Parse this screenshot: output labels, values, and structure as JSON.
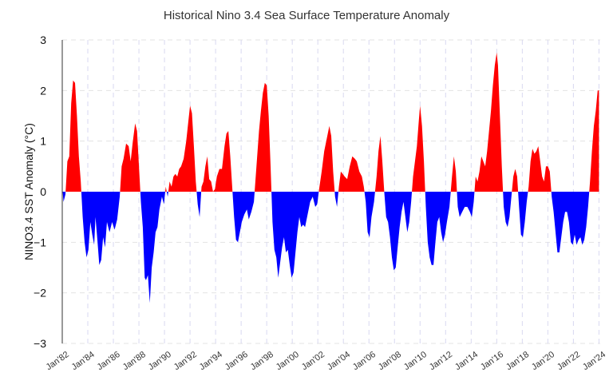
{
  "chart_data": {
    "type": "area",
    "title": "Historical Nino 3.4 Sea Surface Temperature Anomaly",
    "ylabel": "NINO3.4 SST Anomaly (°C)",
    "xlabel": "",
    "ylim": [
      -3,
      3
    ],
    "yticks": [
      "3",
      "2",
      "1",
      "0",
      "−1",
      "−2",
      "−3"
    ],
    "ytick_values": [
      3,
      2,
      1,
      0,
      -1,
      -2,
      -3
    ],
    "xticks": [
      "Jan'82",
      "Jan'84",
      "Jan'86",
      "Jan'88",
      "Jan'90",
      "Jan'92",
      "Jan'94",
      "Jan'96",
      "Jan'98",
      "Jan'00",
      "Jan'02",
      "Jan'04",
      "Jan'06",
      "Jan'08",
      "Jan'10",
      "Jan'12",
      "Jan'14",
      "Jan'16",
      "Jan'18",
      "Jan'20",
      "Jan'22",
      "Jan'24"
    ],
    "xtick_years": [
      1982,
      1984,
      1986,
      1988,
      1990,
      1992,
      1994,
      1996,
      1998,
      2000,
      2002,
      2004,
      2006,
      2008,
      2010,
      2012,
      2014,
      2016,
      2018,
      2020,
      2022,
      2024
    ],
    "xlim": [
      1982.0,
      2024.1
    ],
    "grid": true,
    "legend": "none",
    "colors": {
      "positive": "#ff0000",
      "negative": "#0000ff",
      "grid_h": "#e3e3e3",
      "grid_v": "#d8d8f0"
    },
    "series": [
      {
        "values": [
          [
            1982.0,
            0.1
          ],
          [
            1982.1,
            -0.2
          ],
          [
            1982.25,
            -0.05
          ],
          [
            1982.4,
            0.6
          ],
          [
            1982.55,
            0.7
          ],
          [
            1982.7,
            1.75
          ],
          [
            1982.85,
            2.2
          ],
          [
            1983.0,
            2.15
          ],
          [
            1983.15,
            1.5
          ],
          [
            1983.3,
            0.7
          ],
          [
            1983.45,
            0.2
          ],
          [
            1983.6,
            -0.5
          ],
          [
            1983.75,
            -1.0
          ],
          [
            1983.9,
            -1.3
          ],
          [
            1984.05,
            -1.15
          ],
          [
            1984.2,
            -0.6
          ],
          [
            1984.35,
            -0.85
          ],
          [
            1984.5,
            -1.05
          ],
          [
            1984.6,
            -0.5
          ],
          [
            1984.75,
            -0.95
          ],
          [
            1984.9,
            -1.45
          ],
          [
            1985.05,
            -1.35
          ],
          [
            1985.2,
            -0.9
          ],
          [
            1985.35,
            -1.1
          ],
          [
            1985.5,
            -0.6
          ],
          [
            1985.7,
            -0.8
          ],
          [
            1985.9,
            -0.6
          ],
          [
            1986.1,
            -0.75
          ],
          [
            1986.3,
            -0.55
          ],
          [
            1986.5,
            -0.1
          ],
          [
            1986.65,
            0.5
          ],
          [
            1986.8,
            0.65
          ],
          [
            1987.0,
            0.95
          ],
          [
            1987.2,
            0.9
          ],
          [
            1987.35,
            0.6
          ],
          [
            1987.5,
            0.95
          ],
          [
            1987.7,
            1.35
          ],
          [
            1987.85,
            1.2
          ],
          [
            1988.0,
            0.5
          ],
          [
            1988.15,
            -0.2
          ],
          [
            1988.3,
            -0.7
          ],
          [
            1988.45,
            -1.7
          ],
          [
            1988.55,
            -1.75
          ],
          [
            1988.7,
            -1.65
          ],
          [
            1988.85,
            -2.2
          ],
          [
            1989.0,
            -1.5
          ],
          [
            1989.15,
            -1.2
          ],
          [
            1989.3,
            -0.8
          ],
          [
            1989.45,
            -0.7
          ],
          [
            1989.6,
            -0.35
          ],
          [
            1989.8,
            -0.1
          ],
          [
            1989.95,
            -0.25
          ],
          [
            1990.1,
            0.1
          ],
          [
            1990.25,
            -0.1
          ],
          [
            1990.4,
            0.2
          ],
          [
            1990.55,
            0.1
          ],
          [
            1990.7,
            0.3
          ],
          [
            1990.85,
            0.35
          ],
          [
            1991.0,
            0.3
          ],
          [
            1991.15,
            0.45
          ],
          [
            1991.3,
            0.5
          ],
          [
            1991.5,
            0.65
          ],
          [
            1991.7,
            1.0
          ],
          [
            1991.85,
            1.35
          ],
          [
            1992.0,
            1.7
          ],
          [
            1992.15,
            1.55
          ],
          [
            1992.3,
            0.9
          ],
          [
            1992.45,
            0.2
          ],
          [
            1992.6,
            -0.25
          ],
          [
            1992.75,
            -0.5
          ],
          [
            1992.9,
            0.1
          ],
          [
            1993.05,
            0.2
          ],
          [
            1993.2,
            0.5
          ],
          [
            1993.35,
            0.7
          ],
          [
            1993.5,
            0.25
          ],
          [
            1993.65,
            0.2
          ],
          [
            1993.8,
            0.0
          ],
          [
            1993.95,
            0.05
          ],
          [
            1994.1,
            0.3
          ],
          [
            1994.3,
            0.45
          ],
          [
            1994.5,
            0.45
          ],
          [
            1994.7,
            0.9
          ],
          [
            1994.85,
            1.15
          ],
          [
            1995.0,
            1.2
          ],
          [
            1995.15,
            0.7
          ],
          [
            1995.3,
            0.1
          ],
          [
            1995.45,
            -0.5
          ],
          [
            1995.6,
            -0.95
          ],
          [
            1995.75,
            -1.0
          ],
          [
            1995.9,
            -0.8
          ],
          [
            1996.05,
            -0.6
          ],
          [
            1996.25,
            -0.45
          ],
          [
            1996.45,
            -0.35
          ],
          [
            1996.6,
            -0.55
          ],
          [
            1996.8,
            -0.4
          ],
          [
            1997.0,
            -0.2
          ],
          [
            1997.2,
            0.5
          ],
          [
            1997.4,
            1.2
          ],
          [
            1997.55,
            1.6
          ],
          [
            1997.7,
            1.95
          ],
          [
            1997.85,
            2.15
          ],
          [
            1998.0,
            2.1
          ],
          [
            1998.15,
            1.5
          ],
          [
            1998.3,
            0.5
          ],
          [
            1998.45,
            -0.6
          ],
          [
            1998.6,
            -1.15
          ],
          [
            1998.75,
            -1.3
          ],
          [
            1998.9,
            -1.7
          ],
          [
            1999.05,
            -1.4
          ],
          [
            1999.2,
            -1.1
          ],
          [
            1999.35,
            -0.9
          ],
          [
            1999.5,
            -1.2
          ],
          [
            1999.65,
            -1.15
          ],
          [
            1999.8,
            -1.45
          ],
          [
            1999.95,
            -1.7
          ],
          [
            2000.1,
            -1.6
          ],
          [
            2000.25,
            -1.2
          ],
          [
            2000.4,
            -0.8
          ],
          [
            2000.55,
            -0.5
          ],
          [
            2000.7,
            -0.7
          ],
          [
            2000.85,
            -0.65
          ],
          [
            2001.0,
            -0.7
          ],
          [
            2001.2,
            -0.45
          ],
          [
            2001.4,
            -0.2
          ],
          [
            2001.6,
            -0.1
          ],
          [
            2001.8,
            -0.3
          ],
          [
            2001.95,
            -0.25
          ],
          [
            2002.1,
            0.05
          ],
          [
            2002.3,
            0.4
          ],
          [
            2002.5,
            0.8
          ],
          [
            2002.7,
            1.05
          ],
          [
            2002.9,
            1.3
          ],
          [
            2003.05,
            1.1
          ],
          [
            2003.2,
            0.4
          ],
          [
            2003.35,
            -0.1
          ],
          [
            2003.5,
            -0.3
          ],
          [
            2003.65,
            0.1
          ],
          [
            2003.8,
            0.4
          ],
          [
            2003.95,
            0.35
          ],
          [
            2004.1,
            0.3
          ],
          [
            2004.3,
            0.25
          ],
          [
            2004.5,
            0.5
          ],
          [
            2004.7,
            0.7
          ],
          [
            2004.9,
            0.65
          ],
          [
            2005.05,
            0.6
          ],
          [
            2005.25,
            0.4
          ],
          [
            2005.45,
            0.3
          ],
          [
            2005.6,
            0.1
          ],
          [
            2005.75,
            -0.2
          ],
          [
            2005.9,
            -0.8
          ],
          [
            2006.05,
            -0.9
          ],
          [
            2006.2,
            -0.5
          ],
          [
            2006.4,
            -0.2
          ],
          [
            2006.6,
            0.3
          ],
          [
            2006.75,
            0.8
          ],
          [
            2006.9,
            1.1
          ],
          [
            2007.05,
            0.6
          ],
          [
            2007.2,
            0.0
          ],
          [
            2007.35,
            -0.5
          ],
          [
            2007.5,
            -0.6
          ],
          [
            2007.65,
            -0.9
          ],
          [
            2007.8,
            -1.3
          ],
          [
            2007.95,
            -1.55
          ],
          [
            2008.1,
            -1.5
          ],
          [
            2008.25,
            -1.1
          ],
          [
            2008.4,
            -0.7
          ],
          [
            2008.55,
            -0.4
          ],
          [
            2008.7,
            -0.2
          ],
          [
            2008.85,
            -0.5
          ],
          [
            2009.0,
            -0.8
          ],
          [
            2009.15,
            -0.6
          ],
          [
            2009.3,
            -0.2
          ],
          [
            2009.45,
            0.3
          ],
          [
            2009.6,
            0.6
          ],
          [
            2009.75,
            0.9
          ],
          [
            2009.9,
            1.4
          ],
          [
            2010.0,
            1.7
          ],
          [
            2010.15,
            1.3
          ],
          [
            2010.3,
            0.6
          ],
          [
            2010.45,
            -0.3
          ],
          [
            2010.6,
            -1.0
          ],
          [
            2010.75,
            -1.3
          ],
          [
            2010.9,
            -1.45
          ],
          [
            2011.05,
            -1.45
          ],
          [
            2011.2,
            -1.0
          ],
          [
            2011.35,
            -0.6
          ],
          [
            2011.5,
            -0.5
          ],
          [
            2011.65,
            -0.8
          ],
          [
            2011.8,
            -1.0
          ],
          [
            2011.95,
            -0.85
          ],
          [
            2012.1,
            -0.6
          ],
          [
            2012.3,
            -0.3
          ],
          [
            2012.5,
            0.3
          ],
          [
            2012.65,
            0.7
          ],
          [
            2012.8,
            0.4
          ],
          [
            2012.95,
            -0.3
          ],
          [
            2013.1,
            -0.5
          ],
          [
            2013.3,
            -0.4
          ],
          [
            2013.5,
            -0.3
          ],
          [
            2013.7,
            -0.3
          ],
          [
            2013.9,
            -0.4
          ],
          [
            2014.05,
            -0.5
          ],
          [
            2014.2,
            -0.2
          ],
          [
            2014.35,
            0.3
          ],
          [
            2014.5,
            0.2
          ],
          [
            2014.65,
            0.4
          ],
          [
            2014.8,
            0.7
          ],
          [
            2014.95,
            0.6
          ],
          [
            2015.1,
            0.5
          ],
          [
            2015.25,
            0.8
          ],
          [
            2015.4,
            1.2
          ],
          [
            2015.55,
            1.6
          ],
          [
            2015.7,
            2.1
          ],
          [
            2015.85,
            2.5
          ],
          [
            2016.0,
            2.75
          ],
          [
            2016.1,
            2.5
          ],
          [
            2016.25,
            1.5
          ],
          [
            2016.4,
            0.5
          ],
          [
            2016.55,
            -0.3
          ],
          [
            2016.7,
            -0.6
          ],
          [
            2016.85,
            -0.7
          ],
          [
            2017.0,
            -0.5
          ],
          [
            2017.15,
            -0.1
          ],
          [
            2017.3,
            0.3
          ],
          [
            2017.45,
            0.45
          ],
          [
            2017.6,
            0.3
          ],
          [
            2017.75,
            -0.3
          ],
          [
            2017.9,
            -0.85
          ],
          [
            2018.05,
            -0.9
          ],
          [
            2018.2,
            -0.6
          ],
          [
            2018.35,
            -0.2
          ],
          [
            2018.5,
            0.1
          ],
          [
            2018.65,
            0.6
          ],
          [
            2018.8,
            0.85
          ],
          [
            2018.95,
            0.75
          ],
          [
            2019.1,
            0.8
          ],
          [
            2019.25,
            0.9
          ],
          [
            2019.4,
            0.6
          ],
          [
            2019.55,
            0.3
          ],
          [
            2019.7,
            0.2
          ],
          [
            2019.85,
            0.5
          ],
          [
            2020.0,
            0.5
          ],
          [
            2020.15,
            0.4
          ],
          [
            2020.3,
            -0.1
          ],
          [
            2020.45,
            -0.4
          ],
          [
            2020.6,
            -0.8
          ],
          [
            2020.75,
            -1.2
          ],
          [
            2020.9,
            -1.2
          ],
          [
            2021.05,
            -0.9
          ],
          [
            2021.2,
            -0.6
          ],
          [
            2021.35,
            -0.4
          ],
          [
            2021.5,
            -0.4
          ],
          [
            2021.65,
            -0.6
          ],
          [
            2021.8,
            -1.0
          ],
          [
            2021.95,
            -1.05
          ],
          [
            2022.1,
            -0.85
          ],
          [
            2022.25,
            -1.05
          ],
          [
            2022.4,
            -0.95
          ],
          [
            2022.55,
            -0.9
          ],
          [
            2022.7,
            -1.05
          ],
          [
            2022.85,
            -0.95
          ],
          [
            2023.0,
            -0.7
          ],
          [
            2023.15,
            -0.3
          ],
          [
            2023.3,
            0.2
          ],
          [
            2023.45,
            0.8
          ],
          [
            2023.6,
            1.3
          ],
          [
            2023.75,
            1.6
          ],
          [
            2023.9,
            2.0
          ],
          [
            2024.0,
            2.0
          ]
        ]
      }
    ]
  }
}
